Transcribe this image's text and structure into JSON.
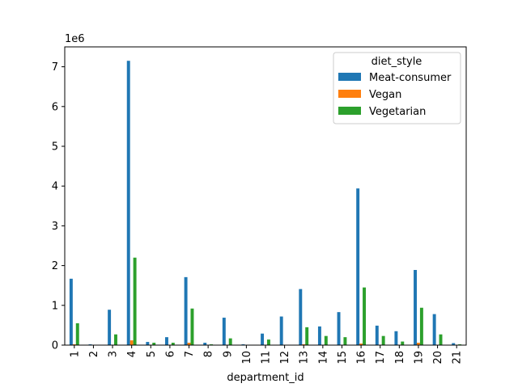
{
  "chart_data": {
    "type": "bar",
    "xlabel": "department_id",
    "ylabel": "",
    "y_scale_label": "1e6",
    "ylim": [
      0,
      7500000
    ],
    "y_ticks": [
      0,
      1000000,
      2000000,
      3000000,
      4000000,
      5000000,
      6000000,
      7000000
    ],
    "y_tick_labels": [
      "0",
      "1",
      "2",
      "3",
      "4",
      "5",
      "6",
      "7"
    ],
    "categories": [
      "1",
      "2",
      "3",
      "4",
      "5",
      "6",
      "7",
      "8",
      "9",
      "10",
      "11",
      "12",
      "13",
      "14",
      "15",
      "16",
      "17",
      "18",
      "19",
      "20",
      "21"
    ],
    "legend": {
      "title": "diet_style",
      "position": "upper-right"
    },
    "grid": false,
    "series": [
      {
        "name": "Meat-consumer",
        "color": "#1f77b4",
        "values": [
          1670000,
          20000,
          890000,
          7150000,
          80000,
          200000,
          1710000,
          60000,
          690000,
          20000,
          290000,
          720000,
          1410000,
          470000,
          830000,
          3940000,
          490000,
          350000,
          1890000,
          780000,
          50000
        ]
      },
      {
        "name": "Vegan",
        "color": "#ff7f0e",
        "values": [
          20000,
          0,
          10000,
          120000,
          0,
          0,
          60000,
          0,
          10000,
          0,
          0,
          10000,
          20000,
          10000,
          10000,
          40000,
          10000,
          0,
          60000,
          10000,
          0
        ]
      },
      {
        "name": "Vegetarian",
        "color": "#2ca02c",
        "values": [
          550000,
          10000,
          270000,
          2200000,
          60000,
          60000,
          920000,
          20000,
          170000,
          5000,
          140000,
          5000,
          450000,
          230000,
          200000,
          1450000,
          230000,
          90000,
          940000,
          270000,
          20000
        ]
      }
    ]
  }
}
